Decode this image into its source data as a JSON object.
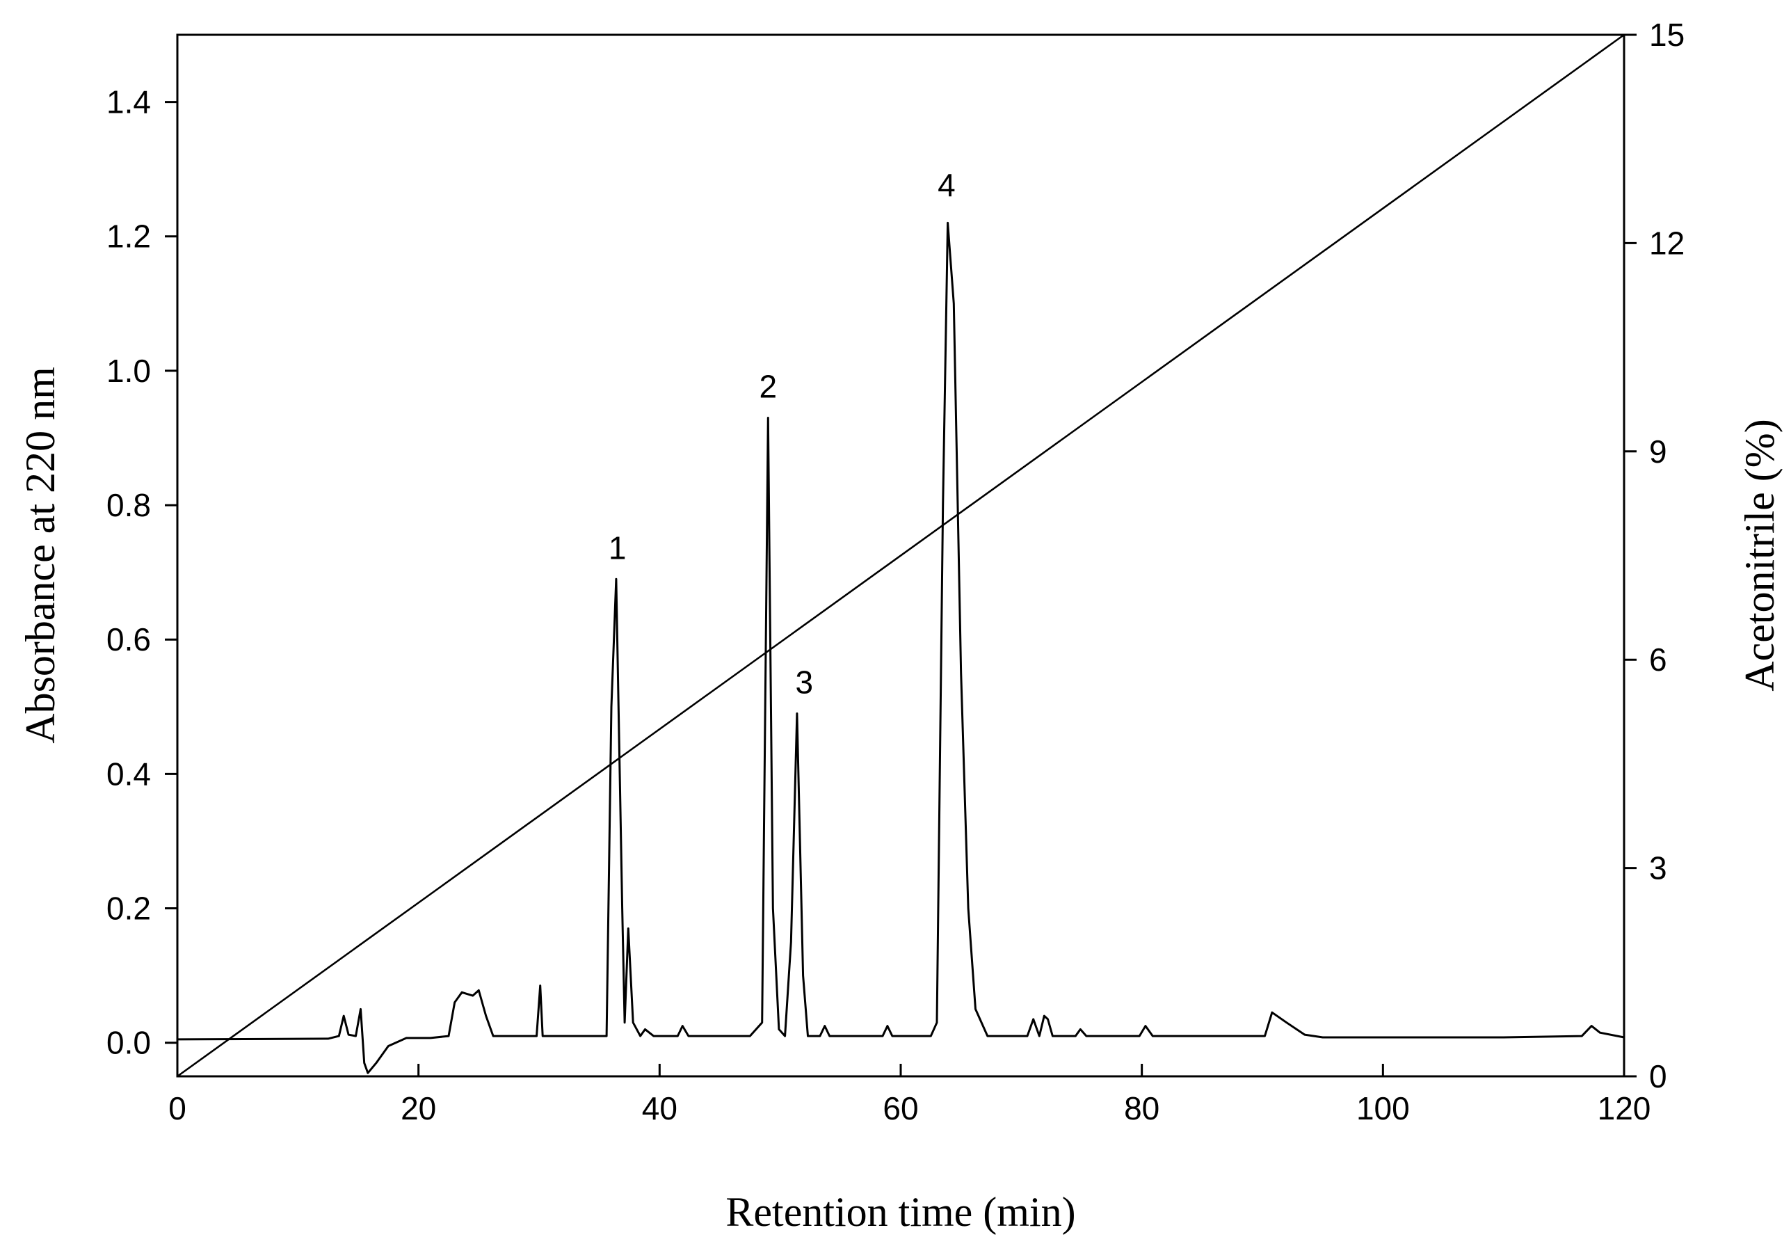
{
  "chart_data": {
    "type": "line",
    "title": "",
    "xlabel": "Retention time (min)",
    "ylabel": "Absorbance at 220 nm",
    "y2label": "Acetonitrile (%)",
    "xlim": [
      0,
      120
    ],
    "ylim": [
      -0.05,
      1.5
    ],
    "y2lim": [
      0,
      15
    ],
    "xticks": [
      0,
      20,
      40,
      60,
      80,
      100,
      120
    ],
    "xtick_labels": [
      "0",
      "20",
      "40",
      "60",
      "80",
      "100",
      "120"
    ],
    "yticks": [
      0.0,
      0.2,
      0.4,
      0.6,
      0.8,
      1.0,
      1.2,
      1.4
    ],
    "ytick_labels": [
      "0.0",
      "0.2",
      "0.4",
      "0.6",
      "0.8",
      "1.0",
      "1.2",
      "1.4"
    ],
    "y2ticks": [
      0,
      3,
      6,
      9,
      12,
      15
    ],
    "y2tick_labels": [
      "0",
      "3",
      "6",
      "9",
      "12",
      "15"
    ],
    "grid": false,
    "series": [
      {
        "name": "Absorbance at 220 nm",
        "axis": "left",
        "x": [
          0,
          12.5,
          13.4,
          13.8,
          14.2,
          14.8,
          15.2,
          15.5,
          15.8,
          16.5,
          17.5,
          19,
          21,
          22.5,
          23,
          23.6,
          24.5,
          25,
          25.6,
          26.2,
          29.8,
          30.1,
          30.3,
          30.6,
          35.6,
          36.0,
          36.4,
          36.9,
          37.1,
          37.4,
          37.8,
          38.4,
          38.8,
          39.5,
          41.5,
          41.9,
          42.4,
          47.5,
          48.5,
          49.0,
          49.4,
          49.9,
          50.4,
          50.9,
          51.4,
          51.9,
          52.3,
          53.3,
          53.7,
          54.1,
          56,
          58.5,
          58.9,
          59.3,
          62.5,
          63.0,
          63.5,
          63.9,
          64.4,
          65.0,
          65.6,
          66.2,
          67.2,
          70.5,
          71.0,
          71.5,
          71.9,
          72.2,
          72.6,
          74.5,
          74.9,
          75.4,
          79.8,
          80.3,
          80.9,
          90.2,
          90.8,
          92,
          93.5,
          95,
          105,
          110,
          116.5,
          117.3,
          118,
          120
        ],
        "values": [
          0.005,
          0.006,
          0.01,
          0.04,
          0.012,
          0.01,
          0.05,
          -0.03,
          -0.045,
          -0.03,
          -0.005,
          0.007,
          0.007,
          0.01,
          0.06,
          0.075,
          0.07,
          0.078,
          0.04,
          0.01,
          0.01,
          0.085,
          0.01,
          0.01,
          0.01,
          0.5,
          0.69,
          0.2,
          0.03,
          0.17,
          0.03,
          0.01,
          0.02,
          0.01,
          0.01,
          0.025,
          0.01,
          0.01,
          0.03,
          0.93,
          0.2,
          0.02,
          0.01,
          0.15,
          0.49,
          0.1,
          0.01,
          0.01,
          0.025,
          0.01,
          0.01,
          0.01,
          0.025,
          0.01,
          0.01,
          0.03,
          0.8,
          1.22,
          1.1,
          0.55,
          0.2,
          0.05,
          0.01,
          0.01,
          0.035,
          0.01,
          0.04,
          0.035,
          0.01,
          0.01,
          0.02,
          0.01,
          0.01,
          0.025,
          0.01,
          0.01,
          0.045,
          0.03,
          0.012,
          0.008,
          0.008,
          0.008,
          0.01,
          0.025,
          0.015,
          0.008
        ]
      },
      {
        "name": "Acetonitrile (%)",
        "axis": "right",
        "x": [
          0,
          120
        ],
        "values": [
          0,
          15
        ]
      }
    ],
    "annotations": [
      {
        "text": "1",
        "x": 36.5,
        "y": 0.72
      },
      {
        "text": "2",
        "x": 49.0,
        "y": 0.96
      },
      {
        "text": "3",
        "x": 52.0,
        "y": 0.52
      },
      {
        "text": "4",
        "x": 63.8,
        "y": 1.26
      }
    ]
  }
}
